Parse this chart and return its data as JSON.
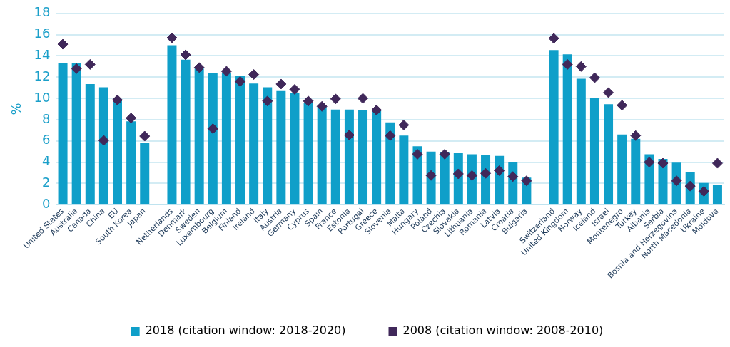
{
  "chart_data": {
    "type": "bar",
    "ylabel": "%",
    "categories": [
      "United States",
      "Australia",
      "Canada",
      "China",
      "EU",
      "South Korea",
      "Japan",
      null,
      "Netherlands",
      "Denmark",
      "Sweden",
      "Luxembourg",
      "Belgium",
      "Finland",
      "Ireland",
      "Italy",
      "Austria",
      "Germany",
      "Cyprus",
      "Spain",
      "France",
      "Estonia",
      "Portugal",
      "Greece",
      "Slovenia",
      "Malta",
      "Hungary",
      "Poland",
      "Czechia",
      "Slovakia",
      "Lithuania",
      "Romania",
      "Latvia",
      "Croatia",
      "Bulgaria",
      null,
      "Switzerland",
      "United Kingdom",
      "Norway",
      "Iceland",
      "Israel",
      "Montenegro",
      "Turkey",
      "Albania",
      "Serbia",
      "Bosnia and Herzegovina",
      "North Macedonia",
      "Ukraine",
      "Moldova"
    ],
    "series": [
      {
        "name": "2018 (citation window: 2018-2020)",
        "color": "#0f9fc9",
        "values": [
          13.35,
          13.35,
          11.35,
          11.05,
          9.85,
          7.85,
          5.8,
          null,
          15.0,
          13.65,
          12.8,
          12.4,
          12.35,
          12.15,
          11.4,
          11.05,
          10.7,
          10.5,
          9.55,
          9.25,
          8.95,
          8.95,
          8.9,
          8.85,
          7.75,
          6.5,
          5.5,
          5.0,
          4.95,
          4.85,
          4.75,
          4.65,
          4.6,
          4.0,
          2.55,
          null,
          14.55,
          14.15,
          11.85,
          10.0,
          9.45,
          6.6,
          6.2,
          4.75,
          4.3,
          3.95,
          3.1,
          2.05,
          1.85
        ]
      },
      {
        "name": "2008 (citation window: 2008-2010)",
        "type": "scatter",
        "color": "#40285a",
        "values": [
          15.1,
          12.8,
          13.2,
          6.05,
          9.85,
          8.15,
          6.45,
          null,
          15.7,
          14.1,
          12.9,
          7.15,
          12.55,
          11.6,
          12.25,
          9.75,
          11.35,
          10.85,
          9.75,
          9.25,
          9.95,
          6.55,
          10.0,
          8.9,
          6.5,
          7.5,
          4.75,
          2.75,
          4.75,
          2.9,
          2.75,
          2.95,
          3.2,
          2.65,
          2.25,
          null,
          15.65,
          13.2,
          13.0,
          11.95,
          10.55,
          9.35,
          6.5,
          4.0,
          3.9,
          2.25,
          1.75,
          1.25,
          3.9
        ]
      }
    ],
    "ylim": [
      0,
      18
    ],
    "yticks": [
      0,
      2,
      4,
      6,
      8,
      10,
      12,
      14,
      16,
      18
    ],
    "grid": "y",
    "legend": "bottom",
    "marker": "diamond"
  }
}
